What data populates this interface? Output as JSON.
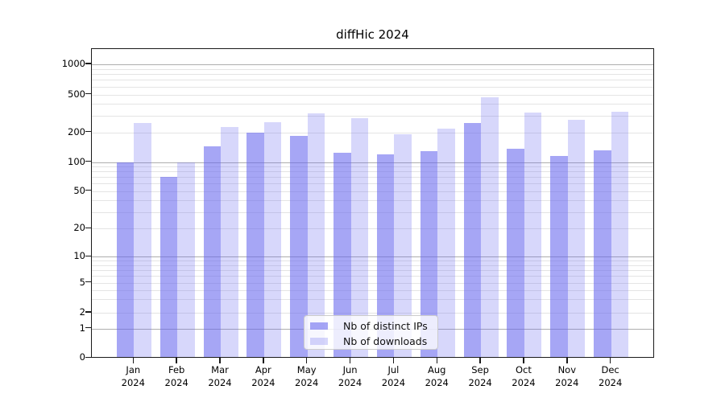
{
  "title": "diffHic 2024",
  "legend": {
    "items": [
      {
        "label": "Nb of distinct IPs",
        "color": "#6666ee",
        "alpha": 0.58
      },
      {
        "label": "Nb of downloads",
        "color": "#6666ee",
        "alpha": 0.26
      }
    ],
    "position": "lower center"
  },
  "y_axis": {
    "tick_values": [
      1000,
      500,
      200,
      100,
      50,
      20,
      10,
      5,
      2,
      1,
      0
    ],
    "major_grid_values": [
      1,
      10,
      100,
      1000
    ],
    "minor_grid_values": [
      2,
      5,
      20,
      50,
      200,
      500,
      3,
      4,
      6,
      7,
      8,
      9,
      30,
      40,
      60,
      70,
      80,
      90,
      300,
      400,
      600,
      700,
      800,
      900
    ]
  },
  "x_axis": {
    "months": [
      "Jan",
      "Feb",
      "Mar",
      "Apr",
      "May",
      "Jun",
      "Jul",
      "Aug",
      "Sep",
      "Oct",
      "Nov",
      "Dec"
    ],
    "year": "2024"
  },
  "chart_data": {
    "type": "bar",
    "title": "diffHic 2024",
    "categories": [
      "Jan 2024",
      "Feb 2024",
      "Mar 2024",
      "Apr 2024",
      "May 2024",
      "Jun 2024",
      "Jul 2024",
      "Aug 2024",
      "Sep 2024",
      "Oct 2024",
      "Nov 2024",
      "Dec 2024"
    ],
    "series": [
      {
        "name": "Nb of distinct IPs",
        "color": "#6666ee",
        "alpha": 0.58,
        "values": [
          97,
          69,
          142,
          195,
          180,
          121,
          118,
          126,
          244,
          134,
          112,
          129
        ]
      },
      {
        "name": "Nb of downloads",
        "color": "#6666ee",
        "alpha": 0.26,
        "values": [
          244,
          97,
          221,
          247,
          311,
          275,
          186,
          211,
          458,
          317,
          265,
          321
        ]
      }
    ],
    "xlabel": "",
    "ylabel": "",
    "yscale": "log-like (0,1,2,5,10,20,50,100,200,500,1000)",
    "yticks": [
      0,
      1,
      2,
      5,
      10,
      20,
      50,
      100,
      200,
      500,
      1000
    ],
    "ylim": [
      0,
      1450
    ],
    "grid": true,
    "legend_position": "lower center"
  }
}
